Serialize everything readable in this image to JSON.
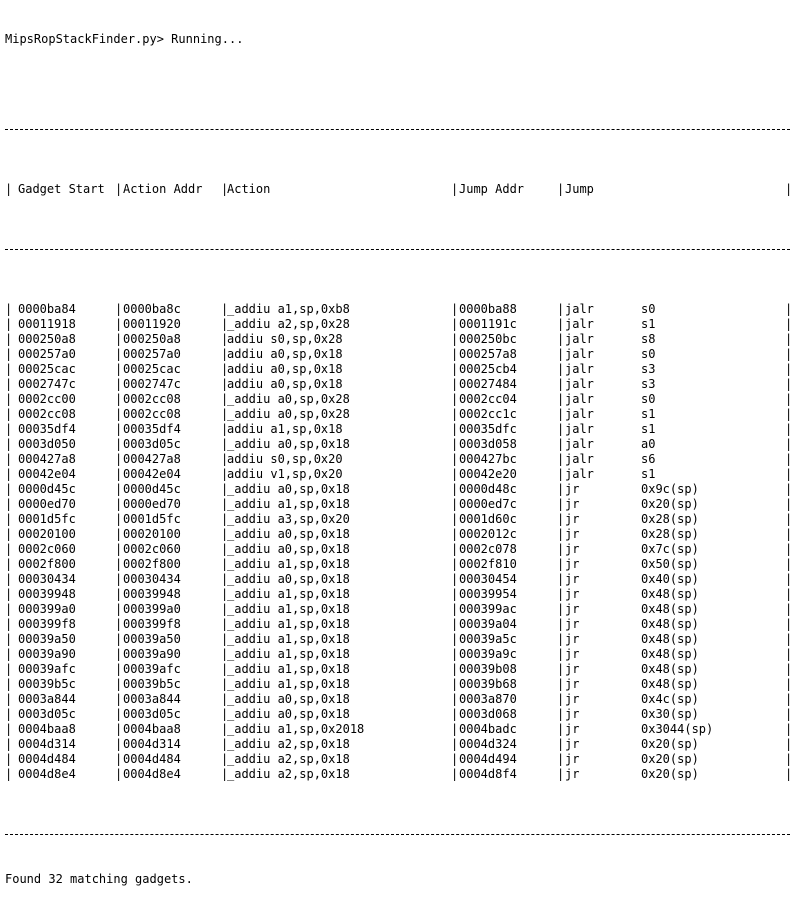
{
  "prompt_line": "MipsRopStackFinder.py> Running...",
  "header": {
    "gadget_start": "Gadget Start",
    "action_addr": "Action Addr",
    "action": "Action",
    "jump_addr": "Jump Addr",
    "jump": "Jump"
  },
  "separator": "|",
  "rows": [
    {
      "start": "0000ba84",
      "action_addr": "0000ba8c",
      "action": "_addiu a1,sp,0xb8",
      "jump_addr": "0000ba88",
      "jump_ins": "jalr",
      "jump_reg": "s0"
    },
    {
      "start": "00011918",
      "action_addr": "00011920",
      "action": "_addiu a2,sp,0x28",
      "jump_addr": "0001191c",
      "jump_ins": "jalr",
      "jump_reg": "s1"
    },
    {
      "start": "000250a8",
      "action_addr": "000250a8",
      "action": "addiu s0,sp,0x28",
      "jump_addr": "000250bc",
      "jump_ins": "jalr",
      "jump_reg": "s8"
    },
    {
      "start": "000257a0",
      "action_addr": "000257a0",
      "action": "addiu a0,sp,0x18",
      "jump_addr": "000257a8",
      "jump_ins": "jalr",
      "jump_reg": "s0"
    },
    {
      "start": "00025cac",
      "action_addr": "00025cac",
      "action": "addiu a0,sp,0x18",
      "jump_addr": "00025cb4",
      "jump_ins": "jalr",
      "jump_reg": "s3"
    },
    {
      "start": "0002747c",
      "action_addr": "0002747c",
      "action": "addiu a0,sp,0x18",
      "jump_addr": "00027484",
      "jump_ins": "jalr",
      "jump_reg": "s3"
    },
    {
      "start": "0002cc00",
      "action_addr": "0002cc08",
      "action": "_addiu a0,sp,0x28",
      "jump_addr": "0002cc04",
      "jump_ins": "jalr",
      "jump_reg": "s0"
    },
    {
      "start": "0002cc08",
      "action_addr": "0002cc08",
      "action": "_addiu a0,sp,0x28",
      "jump_addr": "0002cc1c",
      "jump_ins": "jalr",
      "jump_reg": "s1"
    },
    {
      "start": "00035df4",
      "action_addr": "00035df4",
      "action": "addiu a1,sp,0x18",
      "jump_addr": "00035dfc",
      "jump_ins": "jalr",
      "jump_reg": "s1"
    },
    {
      "start": "0003d050",
      "action_addr": "0003d05c",
      "action": "_addiu a0,sp,0x18",
      "jump_addr": "0003d058",
      "jump_ins": "jalr",
      "jump_reg": "a0"
    },
    {
      "start": "000427a8",
      "action_addr": "000427a8",
      "action": "addiu s0,sp,0x20",
      "jump_addr": "000427bc",
      "jump_ins": "jalr",
      "jump_reg": "s6"
    },
    {
      "start": "00042e04",
      "action_addr": "00042e04",
      "action": "addiu v1,sp,0x20",
      "jump_addr": "00042e20",
      "jump_ins": "jalr",
      "jump_reg": "s1"
    },
    {
      "start": "0000d45c",
      "action_addr": "0000d45c",
      "action": "_addiu a0,sp,0x18",
      "jump_addr": "0000d48c",
      "jump_ins": "jr",
      "jump_reg": "0x9c(sp)"
    },
    {
      "start": "0000ed70",
      "action_addr": "0000ed70",
      "action": "_addiu a1,sp,0x18",
      "jump_addr": "0000ed7c",
      "jump_ins": "jr",
      "jump_reg": "0x20(sp)"
    },
    {
      "start": "0001d5fc",
      "action_addr": "0001d5fc",
      "action": "_addiu a3,sp,0x20",
      "jump_addr": "0001d60c",
      "jump_ins": "jr",
      "jump_reg": "0x28(sp)"
    },
    {
      "start": "00020100",
      "action_addr": "00020100",
      "action": "_addiu a0,sp,0x18",
      "jump_addr": "0002012c",
      "jump_ins": "jr",
      "jump_reg": "0x28(sp)"
    },
    {
      "start": "0002c060",
      "action_addr": "0002c060",
      "action": "_addiu a0,sp,0x18",
      "jump_addr": "0002c078",
      "jump_ins": "jr",
      "jump_reg": "0x7c(sp)"
    },
    {
      "start": "0002f800",
      "action_addr": "0002f800",
      "action": "_addiu a1,sp,0x18",
      "jump_addr": "0002f810",
      "jump_ins": "jr",
      "jump_reg": "0x50(sp)"
    },
    {
      "start": "00030434",
      "action_addr": "00030434",
      "action": "_addiu a0,sp,0x18",
      "jump_addr": "00030454",
      "jump_ins": "jr",
      "jump_reg": "0x40(sp)"
    },
    {
      "start": "00039948",
      "action_addr": "00039948",
      "action": "_addiu a1,sp,0x18",
      "jump_addr": "00039954",
      "jump_ins": "jr",
      "jump_reg": "0x48(sp)"
    },
    {
      "start": "000399a0",
      "action_addr": "000399a0",
      "action": "_addiu a1,sp,0x18",
      "jump_addr": "000399ac",
      "jump_ins": "jr",
      "jump_reg": "0x48(sp)"
    },
    {
      "start": "000399f8",
      "action_addr": "000399f8",
      "action": "_addiu a1,sp,0x18",
      "jump_addr": "00039a04",
      "jump_ins": "jr",
      "jump_reg": "0x48(sp)"
    },
    {
      "start": "00039a50",
      "action_addr": "00039a50",
      "action": "_addiu a1,sp,0x18",
      "jump_addr": "00039a5c",
      "jump_ins": "jr",
      "jump_reg": "0x48(sp)"
    },
    {
      "start": "00039a90",
      "action_addr": "00039a90",
      "action": "_addiu a1,sp,0x18",
      "jump_addr": "00039a9c",
      "jump_ins": "jr",
      "jump_reg": "0x48(sp)"
    },
    {
      "start": "00039afc",
      "action_addr": "00039afc",
      "action": "_addiu a1,sp,0x18",
      "jump_addr": "00039b08",
      "jump_ins": "jr",
      "jump_reg": "0x48(sp)"
    },
    {
      "start": "00039b5c",
      "action_addr": "00039b5c",
      "action": "_addiu a1,sp,0x18",
      "jump_addr": "00039b68",
      "jump_ins": "jr",
      "jump_reg": "0x48(sp)"
    },
    {
      "start": "0003a844",
      "action_addr": "0003a844",
      "action": "_addiu a0,sp,0x18",
      "jump_addr": "0003a870",
      "jump_ins": "jr",
      "jump_reg": "0x4c(sp)"
    },
    {
      "start": "0003d05c",
      "action_addr": "0003d05c",
      "action": "_addiu a0,sp,0x18",
      "jump_addr": "0003d068",
      "jump_ins": "jr",
      "jump_reg": "0x30(sp)"
    },
    {
      "start": "0004baa8",
      "action_addr": "0004baa8",
      "action": "_addiu a1,sp,0x2018",
      "jump_addr": "0004badc",
      "jump_ins": "jr",
      "jump_reg": "0x3044(sp)"
    },
    {
      "start": "0004d314",
      "action_addr": "0004d314",
      "action": "_addiu a2,sp,0x18",
      "jump_addr": "0004d324",
      "jump_ins": "jr",
      "jump_reg": "0x20(sp)"
    },
    {
      "start": "0004d484",
      "action_addr": "0004d484",
      "action": "_addiu a2,sp,0x18",
      "jump_addr": "0004d494",
      "jump_ins": "jr",
      "jump_reg": "0x20(sp)"
    },
    {
      "start": "0004d8e4",
      "action_addr": "0004d8e4",
      "action": "_addiu a2,sp,0x18",
      "jump_addr": "0004d8f4",
      "jump_ins": "jr",
      "jump_reg": "0x20(sp)"
    }
  ],
  "footer": "Found 32 matching gadgets."
}
